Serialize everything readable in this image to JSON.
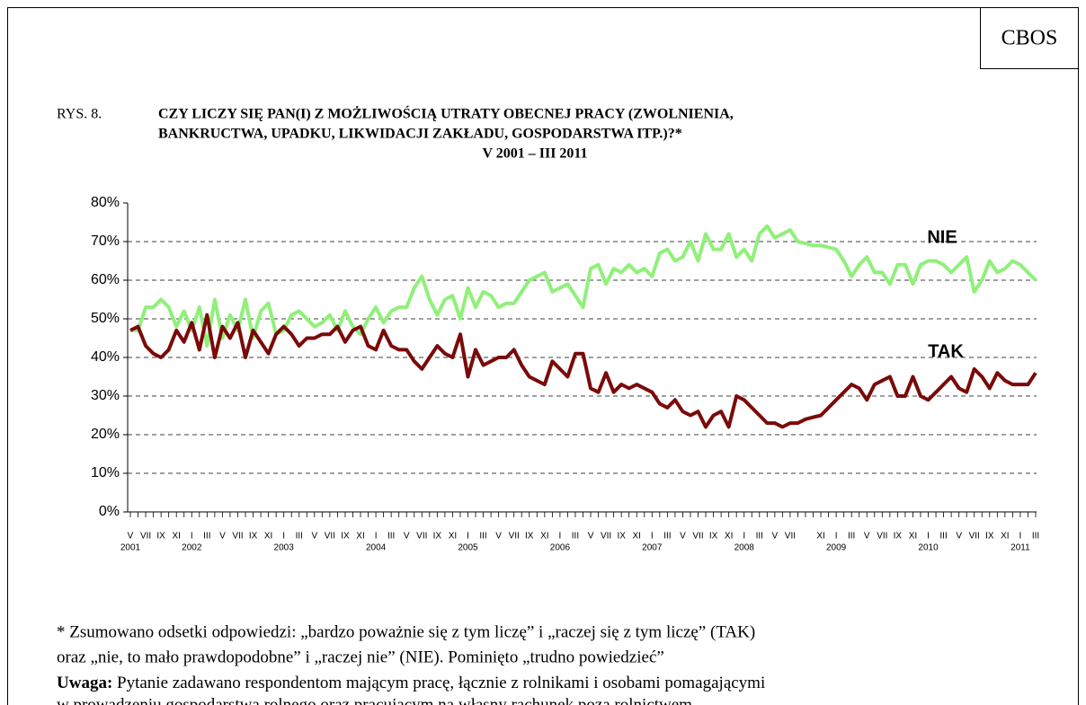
{
  "header": {
    "brand": "CBOS",
    "figure_label": "RYS. 8."
  },
  "chart_data": {
    "type": "line",
    "title": [
      "CZY LICZY SIĘ PAN(I) Z MOŻLIWOŚCIĄ UTRATY OBECNEJ PRACY (ZWOLNIENIA,",
      "BANKRUCTWA, UPADKU, LIKWIDACJI ZAKŁADU, GOSPODARSTWA ITP.)?*"
    ],
    "subtitle": "V 2001  –  III 2011",
    "categories": [
      "V",
      null,
      "VII",
      null,
      "IX",
      null,
      "XI",
      null,
      "I",
      null,
      "III",
      null,
      "V",
      null,
      "VII",
      null,
      "IX",
      null,
      "XI",
      null,
      "I",
      null,
      "III",
      null,
      "V",
      null,
      "VII",
      null,
      "IX",
      null,
      "XI",
      null,
      "I",
      null,
      "III",
      null,
      "V",
      null,
      "VII",
      null,
      "IX",
      null,
      "XI",
      null,
      "I",
      null,
      "III",
      null,
      "V",
      null,
      "VII",
      null,
      "IX",
      null,
      "XI",
      null,
      "I",
      null,
      "III",
      null,
      "V",
      null,
      "VII",
      null,
      "IX",
      null,
      "XI",
      null,
      "I",
      null,
      "III",
      null,
      "V",
      null,
      "VII",
      null,
      "IX",
      null,
      "XI",
      null,
      "I",
      null,
      "III",
      null,
      "V",
      null,
      "VII",
      null,
      null,
      null,
      "XI",
      null,
      "I",
      null,
      "III",
      null,
      "V",
      null,
      "VII",
      null,
      "IX",
      null,
      "XI",
      null,
      "I",
      null,
      "III",
      null,
      "V",
      null,
      "VII",
      null,
      "IX",
      null,
      "XI",
      null,
      "I",
      null,
      "III"
    ],
    "years": [
      "2001",
      "2002",
      "2003",
      "2004",
      "2005",
      "2006",
      "2007",
      "2008",
      "2009",
      "2010",
      "2011"
    ],
    "series": [
      {
        "name": "NIE",
        "color": "#90f07a",
        "values": [
          47,
          47,
          53,
          53,
          55,
          53,
          48,
          52,
          47,
          53,
          43,
          55,
          45,
          51,
          47,
          55,
          45,
          52,
          54,
          46,
          47,
          51,
          52,
          50,
          48,
          49,
          51,
          47,
          52,
          48,
          46,
          50,
          53,
          49,
          52,
          53,
          53,
          58,
          61,
          55,
          51,
          55,
          56,
          50,
          58,
          53,
          57,
          56,
          53,
          54,
          54,
          57,
          60,
          61,
          62,
          57,
          58,
          59,
          56,
          53,
          63,
          64,
          59,
          63,
          62,
          64,
          62,
          63,
          61,
          67,
          68,
          65,
          66,
          70,
          65,
          72,
          68,
          68,
          72,
          66,
          68,
          65,
          72,
          74,
          71,
          72,
          73,
          70,
          69.5,
          69,
          69,
          68.5,
          68,
          65,
          61,
          64,
          66,
          62,
          62,
          59,
          64,
          64,
          59,
          64,
          65,
          65,
          64,
          62,
          64,
          66,
          57,
          60,
          65,
          62,
          63,
          65,
          64,
          62,
          60
        ]
      },
      {
        "name": "TAK",
        "color": "#7a0a0a",
        "values": [
          47,
          48,
          43,
          41,
          40,
          42,
          47,
          44,
          49,
          42,
          51,
          40,
          48,
          45,
          49,
          40,
          47,
          44,
          41,
          46,
          48,
          46,
          43,
          45,
          45,
          46,
          46,
          48,
          44,
          47,
          48,
          43,
          42,
          47,
          43,
          42,
          42,
          39,
          37,
          40,
          43,
          41,
          40,
          46,
          35,
          42,
          38,
          39,
          40,
          40,
          42,
          38,
          35,
          34,
          33,
          39,
          37,
          35,
          41,
          41,
          32,
          31,
          36,
          31,
          33,
          32,
          33,
          32,
          31,
          28,
          27,
          29,
          26,
          25,
          26,
          22,
          25,
          26,
          22,
          30,
          29,
          27,
          25,
          23,
          23,
          22,
          23,
          23,
          24,
          24.5,
          25,
          27,
          29,
          31,
          33,
          32,
          29,
          33,
          34,
          35,
          30,
          30,
          35,
          30,
          29,
          31,
          33,
          35,
          32,
          31,
          37,
          35,
          32,
          36,
          34,
          33,
          33,
          33,
          36
        ]
      }
    ],
    "ylim": [
      0,
      80
    ],
    "yticks": [
      {
        "value": 0,
        "label": "0%"
      },
      {
        "value": 10,
        "label": "10%"
      },
      {
        "value": 20,
        "label": "20%"
      },
      {
        "value": 30,
        "label": "30%"
      },
      {
        "value": 40,
        "label": "40%"
      },
      {
        "value": 50,
        "label": "50%"
      },
      {
        "value": 60,
        "label": "60%"
      },
      {
        "value": 70,
        "label": "70%"
      },
      {
        "value": 80,
        "label": "80%"
      }
    ],
    "grid": true
  },
  "notes": {
    "footnote": [
      "* Zsumowano odsetki odpowiedzi: „bardzo poważnie się z tym liczę” i „raczej się z tym liczę” (TAK)",
      "oraz „nie, to mało prawdopodobne” i „raczej nie” (NIE). Pominięto „trudno powiedzieć”"
    ],
    "label": "Uwaga:",
    "lines": [
      " Pytanie zadawano respondentom mającym pracę, łącznie z rolnikami i osobami pomagającymi",
      "w prowadzeniu gospodarstwa rolnego oraz pracującym na własny rachunek poza rolnictwem"
    ]
  }
}
